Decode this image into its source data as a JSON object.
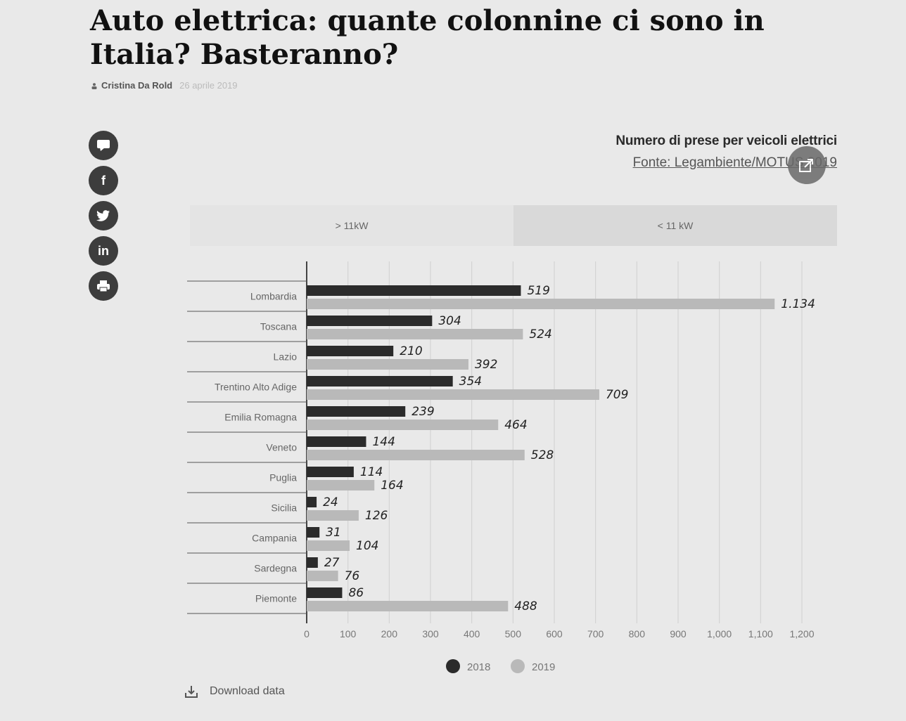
{
  "article": {
    "title": "Auto elettrica: quante colonnine ci sono in Italia? Basteranno?",
    "author": "Cristina Da Rold",
    "date": "26 aprile 2019"
  },
  "share_buttons": [
    {
      "name": "comment-icon",
      "glyph": "■"
    },
    {
      "name": "facebook-icon",
      "glyph": "f"
    },
    {
      "name": "twitter-icon",
      "glyph": "t"
    },
    {
      "name": "linkedin-icon",
      "glyph": "in"
    },
    {
      "name": "print-icon",
      "glyph": "▬"
    }
  ],
  "chart_header": {
    "title": "Numero di prese per veicoli elettrici",
    "source": "Fonte: Legambiente/MOTUS 2019"
  },
  "filter_tabs": [
    {
      "label": "> 11kW",
      "active": true
    },
    {
      "label": "< 11 kW",
      "active": false
    }
  ],
  "download_label": "Download data",
  "chart_data": {
    "type": "bar",
    "orientation": "horizontal",
    "categories": [
      "Lombardia",
      "Toscana",
      "Lazio",
      "Trentino Alto Adige",
      "Emilia Romagna",
      "Veneto",
      "Puglia",
      "Sicilia",
      "Campania",
      "Sardegna",
      "Piemonte"
    ],
    "series": [
      {
        "name": "2018",
        "values": [
          519,
          304,
          210,
          354,
          239,
          144,
          114,
          24,
          31,
          27,
          86
        ],
        "labels": [
          "519",
          "304",
          "210",
          "354",
          "239",
          "144",
          "114",
          "24",
          "31",
          "27",
          "86"
        ],
        "color": "#2b2b2b"
      },
      {
        "name": "2019",
        "values": [
          1134,
          524,
          392,
          709,
          464,
          528,
          164,
          126,
          104,
          76,
          488
        ],
        "labels": [
          "1.134",
          "524",
          "392",
          "709",
          "464",
          "528",
          "164",
          "126",
          "104",
          "76",
          "488"
        ],
        "color": "#b9b9b9"
      }
    ],
    "xlim": [
      0,
      1200
    ],
    "xticks": [
      0,
      100,
      200,
      300,
      400,
      500,
      600,
      700,
      800,
      900,
      1000,
      1100,
      1200
    ],
    "xtick_labels": [
      "0",
      "100",
      "200",
      "300",
      "400",
      "500",
      "600",
      "700",
      "800",
      "900",
      "1,000",
      "1,100",
      "1,200"
    ],
    "grid": true,
    "legend_position": "bottom"
  }
}
